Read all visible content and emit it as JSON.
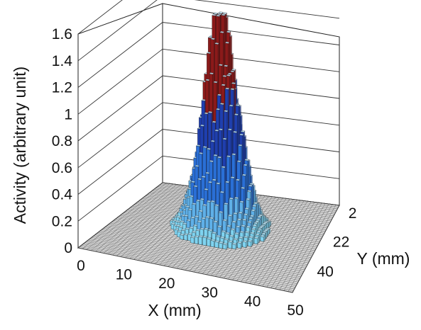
{
  "chart_data": {
    "type": "bar3d",
    "title": "",
    "zlabel": "Activity (arbitrary unit)",
    "xlabel": "X (mm)",
    "ylabel": "Y (mm)",
    "zlim": [
      0,
      1.6
    ],
    "z_ticks": [
      "0",
      "0.2",
      "0.4",
      "0.6",
      "0.8",
      "1",
      "1.2",
      "1.4",
      "1.6"
    ],
    "x_ticks": [
      "0",
      "10",
      "20",
      "30",
      "40",
      "50"
    ],
    "y_ticks": [
      "2",
      "22",
      "40"
    ],
    "grid": true,
    "legend": "none",
    "peak": {
      "x_mm": 25,
      "y_mm": 22,
      "value": 1.53
    },
    "spread_fwhm_mm": 10,
    "series_colors": [
      "#8b1a1a",
      "#1f3fae",
      "#2a6fd6",
      "#5fb0e8",
      "#7fd3f0",
      "#2a2a2a"
    ],
    "floor_color": "#d8d8d8"
  }
}
